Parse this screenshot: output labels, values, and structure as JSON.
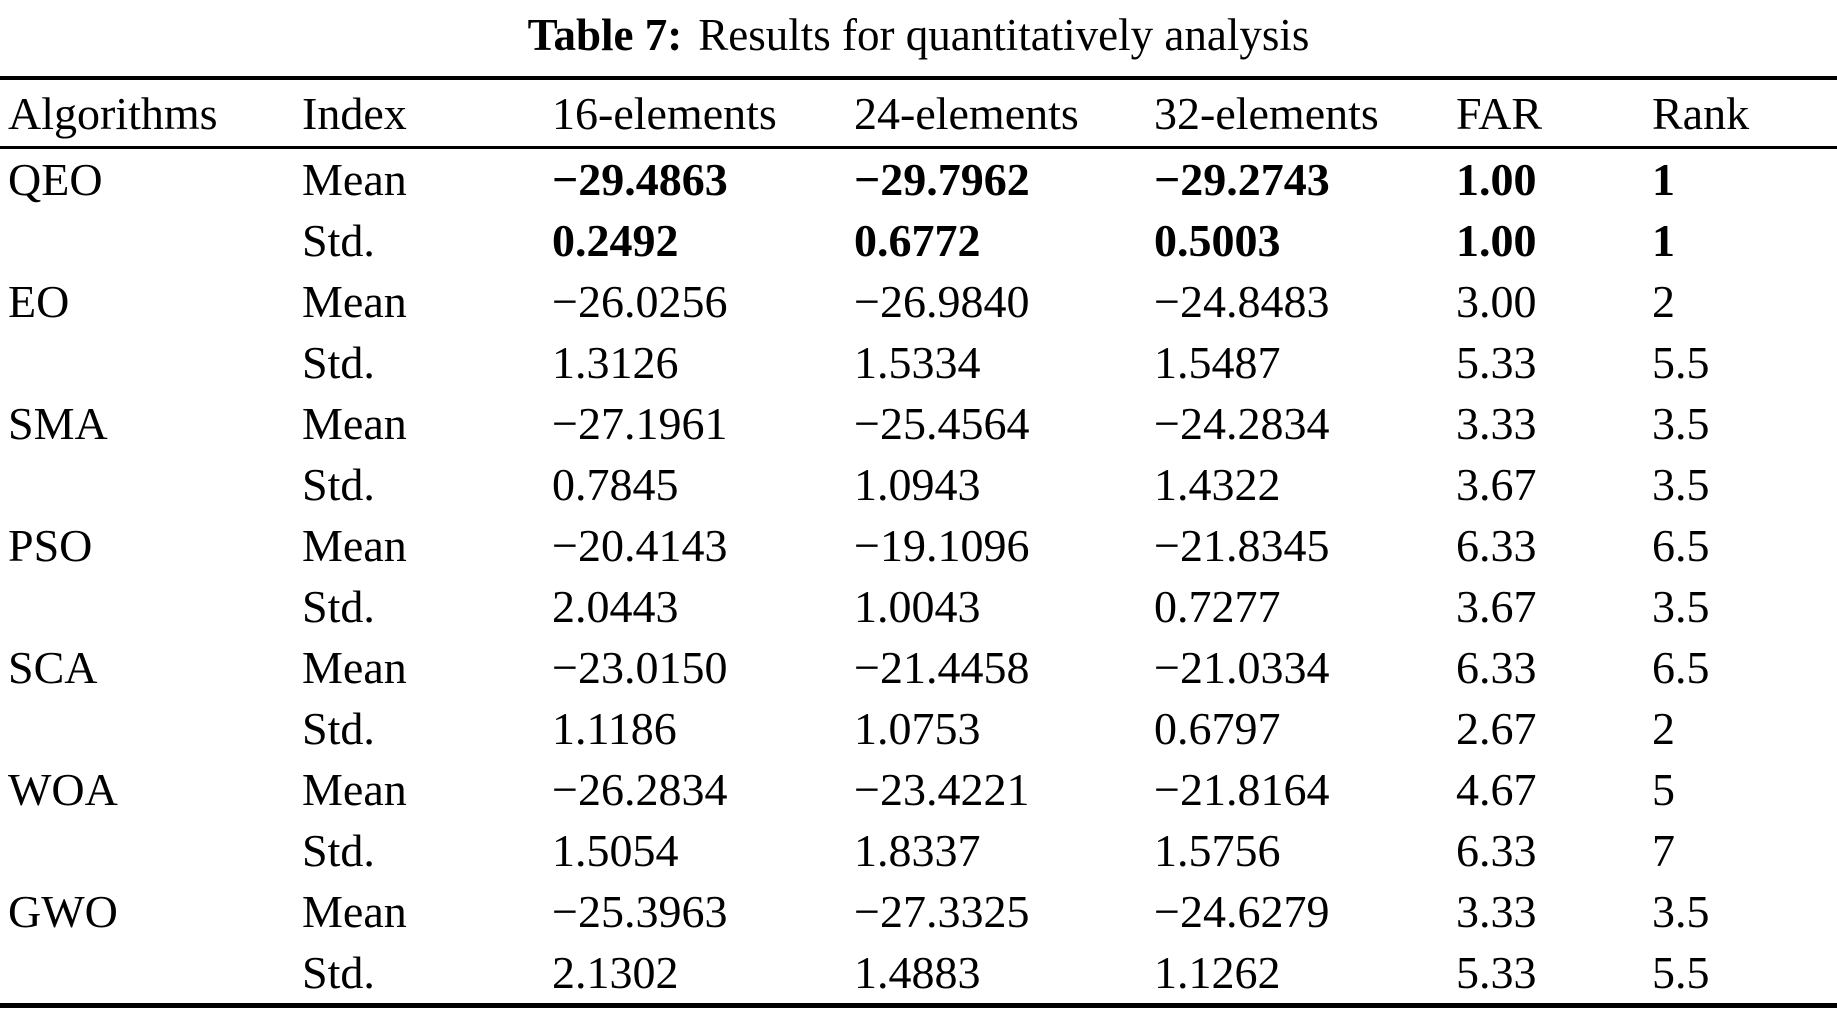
{
  "page": {
    "caption_label": "Table 7:",
    "caption_text": "Results for quantitatively analysis"
  },
  "table": {
    "columns": [
      "Algorithms",
      "Index",
      "16-elements",
      "24-elements",
      "32-elements",
      "FAR",
      "Rank"
    ],
    "rows": [
      {
        "algorithm": "QEO",
        "index": "Mean",
        "values": [
          "−29.4863",
          "−29.7962",
          "−29.2743",
          "1.00",
          "1"
        ],
        "bold": true
      },
      {
        "algorithm": "",
        "index": "Std.",
        "values": [
          "0.2492",
          "0.6772",
          "0.5003",
          "1.00",
          "1"
        ],
        "bold": true
      },
      {
        "algorithm": "EO",
        "index": "Mean",
        "values": [
          "−26.0256",
          "−26.9840",
          "−24.8483",
          "3.00",
          "2"
        ],
        "bold": false
      },
      {
        "algorithm": "",
        "index": "Std.",
        "values": [
          "1.3126",
          "1.5334",
          "1.5487",
          "5.33",
          "5.5"
        ],
        "bold": false
      },
      {
        "algorithm": "SMA",
        "index": "Mean",
        "values": [
          "−27.1961",
          "−25.4564",
          "−24.2834",
          "3.33",
          "3.5"
        ],
        "bold": false
      },
      {
        "algorithm": "",
        "index": "Std.",
        "values": [
          "0.7845",
          "1.0943",
          "1.4322",
          "3.67",
          "3.5"
        ],
        "bold": false
      },
      {
        "algorithm": "PSO",
        "index": "Mean",
        "values": [
          "−20.4143",
          "−19.1096",
          "−21.8345",
          "6.33",
          "6.5"
        ],
        "bold": false
      },
      {
        "algorithm": "",
        "index": "Std.",
        "values": [
          "2.0443",
          "1.0043",
          "0.7277",
          "3.67",
          "3.5"
        ],
        "bold": false
      },
      {
        "algorithm": "SCA",
        "index": "Mean",
        "values": [
          "−23.0150",
          "−21.4458",
          "−21.0334",
          "6.33",
          "6.5"
        ],
        "bold": false
      },
      {
        "algorithm": "",
        "index": "Std.",
        "values": [
          "1.1186",
          "1.0753",
          "0.6797",
          "2.67",
          "2"
        ],
        "bold": false
      },
      {
        "algorithm": "WOA",
        "index": "Mean",
        "values": [
          "−26.2834",
          "−23.4221",
          "−21.8164",
          "4.67",
          "5"
        ],
        "bold": false
      },
      {
        "algorithm": "",
        "index": "Std.",
        "values": [
          "1.5054",
          "1.8337",
          "1.5756",
          "6.33",
          "7"
        ],
        "bold": false
      },
      {
        "algorithm": "GWO",
        "index": "Mean",
        "values": [
          "−25.3963",
          "−27.3325",
          "−24.6279",
          "3.33",
          "3.5"
        ],
        "bold": false
      },
      {
        "algorithm": "",
        "index": "Std.",
        "values": [
          "2.1302",
          "1.4883",
          "1.1262",
          "5.33",
          "5.5"
        ],
        "bold": false
      }
    ]
  }
}
